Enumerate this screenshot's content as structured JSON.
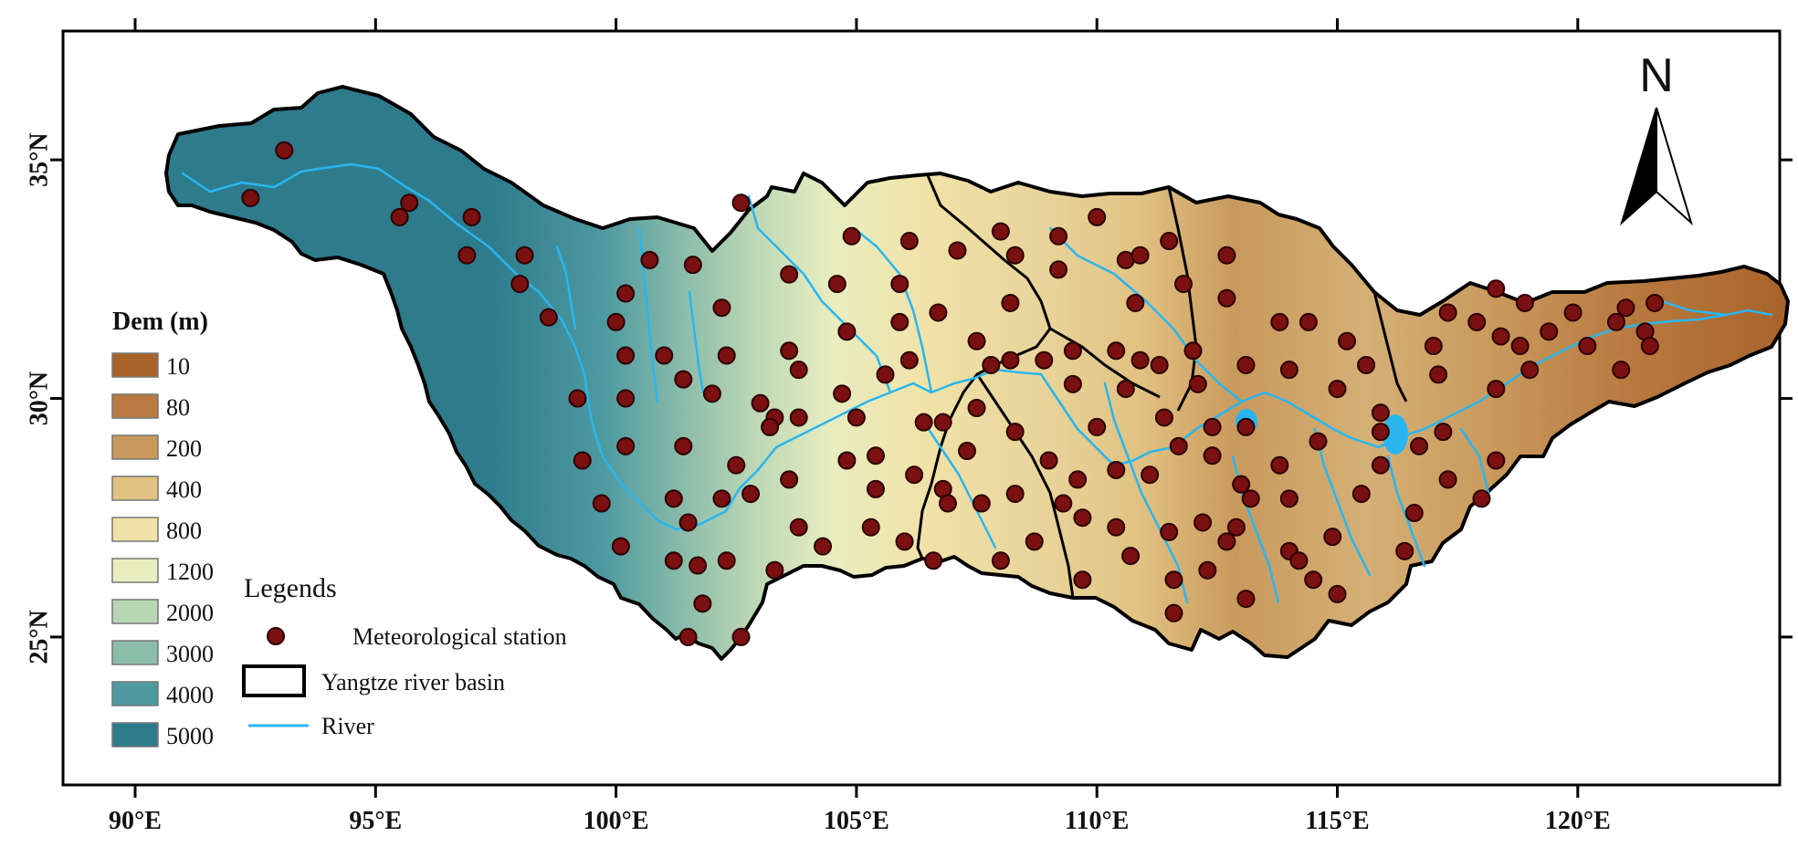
{
  "axes": {
    "x_ticks": [
      "90°E",
      "95°E",
      "100°E",
      "105°E",
      "110°E",
      "115°E",
      "120°E"
    ],
    "x_values": [
      90,
      95,
      100,
      105,
      110,
      115,
      120
    ],
    "y_ticks": [
      "35°N",
      "30°N",
      "25°N"
    ],
    "y_values": [
      35,
      30,
      25
    ],
    "lon_range": [
      88.5,
      124.2
    ],
    "lat_range": [
      21.9,
      37.7
    ]
  },
  "north_arrow": {
    "label": "N"
  },
  "dem_legend": {
    "title": "Dem (m)",
    "classes": [
      {
        "label": "10",
        "color": "#a8632a"
      },
      {
        "label": "80",
        "color": "#b87a40"
      },
      {
        "label": "200",
        "color": "#c9995c"
      },
      {
        "label": "400",
        "color": "#e1c283"
      },
      {
        "label": "800",
        "color": "#f1e2a8"
      },
      {
        "label": "1200",
        "color": "#e8edc0"
      },
      {
        "label": "2000",
        "color": "#b9d6b4"
      },
      {
        "label": "3000",
        "color": "#8cbcaa"
      },
      {
        "label": "4000",
        "color": "#4e9aa1"
      },
      {
        "label": "5000",
        "color": "#2e7b8c"
      }
    ]
  },
  "legend": {
    "title": "Legends",
    "items": [
      {
        "label": "Meteorological station",
        "symbol": "station-dot",
        "color": "#7a1010"
      },
      {
        "label": "Yangtze river basin",
        "symbol": "boundary-box",
        "color": "#000000"
      },
      {
        "label": "River",
        "symbol": "river-line",
        "color": "#29b6f0"
      }
    ]
  },
  "stations": [
    [
      93.1,
      35.2
    ],
    [
      92.4,
      34.2
    ],
    [
      95.7,
      34.1
    ],
    [
      95.5,
      33.8
    ],
    [
      97.0,
      33.8
    ],
    [
      96.9,
      33.0
    ],
    [
      98.1,
      33.0
    ],
    [
      98.0,
      32.4
    ],
    [
      98.6,
      31.7
    ],
    [
      99.2,
      30.0
    ],
    [
      99.3,
      28.7
    ],
    [
      99.7,
      27.8
    ],
    [
      100.1,
      26.9
    ],
    [
      100.0,
      31.6
    ],
    [
      100.2,
      32.2
    ],
    [
      100.2,
      30.9
    ],
    [
      100.2,
      30.0
    ],
    [
      100.2,
      29.0
    ],
    [
      100.7,
      32.9
    ],
    [
      101.0,
      30.9
    ],
    [
      101.4,
      30.4
    ],
    [
      101.4,
      29.0
    ],
    [
      101.2,
      27.9
    ],
    [
      101.5,
      27.4
    ],
    [
      101.2,
      26.6
    ],
    [
      101.5,
      25.0
    ],
    [
      101.7,
      26.5
    ],
    [
      101.8,
      25.7
    ],
    [
      101.6,
      32.8
    ],
    [
      102.2,
      31.9
    ],
    [
      102.3,
      30.9
    ],
    [
      102.2,
      27.9
    ],
    [
      102.0,
      30.1
    ],
    [
      102.3,
      26.6
    ],
    [
      102.5,
      28.6
    ],
    [
      102.6,
      25.0
    ],
    [
      102.6,
      34.1
    ],
    [
      102.8,
      28.0
    ],
    [
      103.0,
      29.9
    ],
    [
      103.3,
      29.6
    ],
    [
      103.3,
      26.4
    ],
    [
      103.2,
      29.4
    ],
    [
      103.6,
      32.6
    ],
    [
      103.6,
      31.0
    ],
    [
      103.8,
      30.6
    ],
    [
      103.8,
      29.6
    ],
    [
      103.6,
      28.3
    ],
    [
      103.8,
      27.3
    ],
    [
      104.3,
      26.9
    ],
    [
      104.6,
      32.4
    ],
    [
      104.8,
      31.4
    ],
    [
      104.9,
      33.4
    ],
    [
      104.7,
      30.1
    ],
    [
      105.0,
      29.6
    ],
    [
      104.8,
      28.7
    ],
    [
      105.4,
      28.8
    ],
    [
      105.4,
      28.1
    ],
    [
      105.3,
      27.3
    ],
    [
      105.6,
      30.5
    ],
    [
      105.9,
      31.6
    ],
    [
      105.9,
      32.4
    ],
    [
      106.1,
      33.3
    ],
    [
      106.1,
      30.8
    ],
    [
      106.4,
      29.5
    ],
    [
      106.2,
      28.4
    ],
    [
      106.0,
      27.0
    ],
    [
      106.6,
      26.6
    ],
    [
      106.7,
      31.8
    ],
    [
      106.8,
      29.5
    ],
    [
      106.8,
      28.1
    ],
    [
      106.9,
      27.8
    ],
    [
      107.1,
      33.1
    ],
    [
      107.3,
      28.9
    ],
    [
      107.5,
      31.2
    ],
    [
      107.5,
      29.8
    ],
    [
      107.6,
      27.8
    ],
    [
      107.8,
      30.7
    ],
    [
      108.0,
      33.5
    ],
    [
      108.0,
      26.6
    ],
    [
      108.2,
      32.0
    ],
    [
      108.2,
      30.8
    ],
    [
      108.3,
      33.0
    ],
    [
      108.3,
      29.3
    ],
    [
      108.3,
      28.0
    ],
    [
      108.7,
      27.0
    ],
    [
      108.9,
      30.8
    ],
    [
      109.0,
      28.7
    ],
    [
      109.2,
      32.7
    ],
    [
      109.2,
      33.4
    ],
    [
      109.3,
      27.8
    ],
    [
      109.5,
      31.0
    ],
    [
      109.5,
      30.3
    ],
    [
      109.6,
      28.3
    ],
    [
      109.7,
      27.5
    ],
    [
      109.7,
      26.2
    ],
    [
      110.0,
      33.8
    ],
    [
      110.0,
      29.4
    ],
    [
      110.4,
      31.0
    ],
    [
      110.4,
      28.5
    ],
    [
      110.4,
      27.3
    ],
    [
      110.6,
      32.9
    ],
    [
      110.6,
      30.2
    ],
    [
      110.7,
      26.7
    ],
    [
      110.8,
      32.0
    ],
    [
      110.9,
      33.0
    ],
    [
      110.9,
      30.8
    ],
    [
      111.1,
      28.4
    ],
    [
      111.3,
      30.7
    ],
    [
      111.5,
      33.3
    ],
    [
      111.4,
      29.6
    ],
    [
      111.5,
      27.2
    ],
    [
      111.6,
      26.2
    ],
    [
      111.6,
      25.5
    ],
    [
      111.7,
      29.0
    ],
    [
      111.8,
      32.4
    ],
    [
      112.0,
      31.0
    ],
    [
      112.1,
      30.3
    ],
    [
      112.2,
      27.4
    ],
    [
      112.3,
      26.4
    ],
    [
      112.4,
      29.4
    ],
    [
      112.4,
      28.8
    ],
    [
      112.7,
      33.0
    ],
    [
      112.7,
      32.1
    ],
    [
      112.7,
      27.0
    ],
    [
      112.9,
      27.3
    ],
    [
      113.1,
      30.7
    ],
    [
      113.0,
      28.2
    ],
    [
      113.1,
      29.4
    ],
    [
      113.2,
      27.9
    ],
    [
      113.1,
      25.8
    ],
    [
      113.8,
      31.6
    ],
    [
      113.8,
      28.6
    ],
    [
      114.0,
      30.6
    ],
    [
      114.0,
      27.9
    ],
    [
      114.0,
      26.8
    ],
    [
      114.2,
      26.6
    ],
    [
      114.4,
      31.6
    ],
    [
      114.5,
      26.2
    ],
    [
      114.6,
      29.1
    ],
    [
      114.9,
      27.1
    ],
    [
      115.0,
      30.2
    ],
    [
      115.0,
      25.9
    ],
    [
      115.2,
      31.2
    ],
    [
      115.5,
      28.0
    ],
    [
      115.6,
      30.7
    ],
    [
      115.9,
      29.7
    ],
    [
      115.9,
      28.6
    ],
    [
      115.9,
      29.3
    ],
    [
      116.4,
      26.8
    ],
    [
      116.7,
      29.0
    ],
    [
      116.6,
      27.6
    ],
    [
      117.0,
      31.1
    ],
    [
      117.1,
      30.5
    ],
    [
      117.2,
      29.3
    ],
    [
      117.3,
      28.3
    ],
    [
      117.3,
      31.8
    ],
    [
      117.9,
      31.6
    ],
    [
      118.0,
      27.9
    ],
    [
      118.3,
      30.2
    ],
    [
      118.3,
      28.7
    ],
    [
      118.3,
      32.3
    ],
    [
      118.4,
      31.3
    ],
    [
      118.8,
      31.1
    ],
    [
      119.0,
      30.6
    ],
    [
      118.9,
      32.0
    ],
    [
      119.4,
      31.4
    ],
    [
      119.9,
      31.8
    ],
    [
      120.2,
      31.1
    ],
    [
      120.8,
      31.6
    ],
    [
      120.9,
      30.6
    ],
    [
      121.0,
      31.9
    ],
    [
      121.4,
      31.4
    ],
    [
      121.5,
      31.1
    ],
    [
      121.6,
      32.0
    ]
  ]
}
